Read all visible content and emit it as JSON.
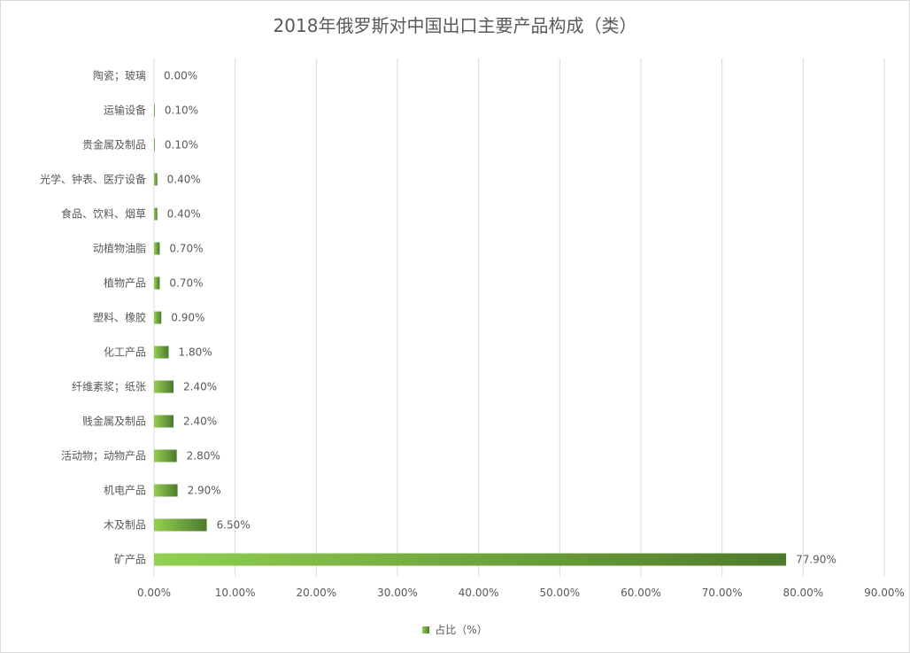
{
  "chart_data": {
    "type": "bar",
    "orientation": "horizontal",
    "title": "2018年俄罗斯对中国出口主要产品构成（类）",
    "categories": [
      "陶瓷；玻璃",
      "运输设备",
      "贵金属及制品",
      "光学、钟表、医疗设备",
      "食品、饮料、烟草",
      "动植物油脂",
      "植物产品",
      "塑料、橡胶",
      "化工产品",
      "纤维素浆；纸张",
      "贱金属及制品",
      "活动物；动物产品",
      "机电产品",
      "木及制品",
      "矿产品"
    ],
    "series": [
      {
        "name": "占比（%）",
        "values": [
          0.0,
          0.1,
          0.1,
          0.4,
          0.4,
          0.7,
          0.7,
          0.9,
          1.8,
          2.4,
          2.4,
          2.8,
          2.9,
          6.5,
          77.9
        ],
        "data_labels": [
          "0.00%",
          "0.10%",
          "0.10%",
          "0.40%",
          "0.40%",
          "0.70%",
          "0.70%",
          "0.90%",
          "1.80%",
          "2.40%",
          "2.40%",
          "2.80%",
          "2.90%",
          "6.50%",
          "77.90%"
        ]
      }
    ],
    "xlim": [
      0,
      90
    ],
    "xticks": [
      0,
      10,
      20,
      30,
      40,
      50,
      60,
      70,
      80,
      90
    ],
    "xtick_labels": [
      "0.00%",
      "10.00%",
      "20.00%",
      "30.00%",
      "40.00%",
      "50.00%",
      "60.00%",
      "70.00%",
      "80.00%",
      "90.00%"
    ],
    "grid": "vertical",
    "legend_position": "bottom",
    "colors": {
      "bar_start": "#92d050",
      "bar_end": "#4e7a2c",
      "grid": "#d9d9d9",
      "text": "#595959"
    }
  }
}
